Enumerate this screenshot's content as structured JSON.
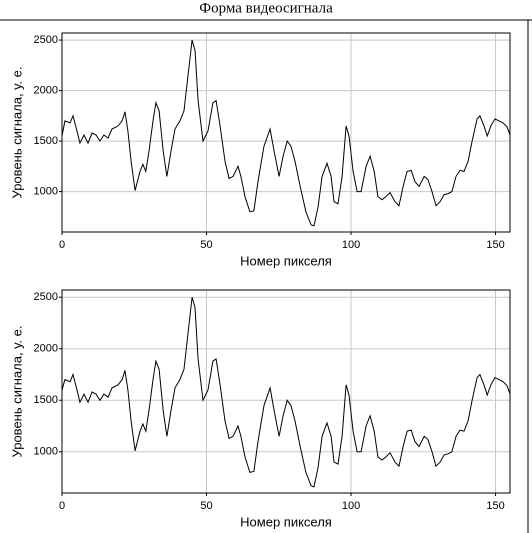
{
  "title": "Форма видеосигнала",
  "chart_data": [
    {
      "type": "line",
      "xlabel": "Номер пикселя",
      "ylabel": "Уровень сигнала,  у. е.",
      "xlim": [
        0,
        155
      ],
      "ylim": [
        600,
        2570
      ],
      "xticks": [
        0,
        50,
        100,
        150
      ],
      "yticks": [
        1000,
        1500,
        2000,
        2500
      ],
      "grid": true,
      "color": "#000000",
      "x": [
        0,
        1,
        2.8,
        3.8,
        5.2,
        6.2,
        7.6,
        9,
        10.4,
        11.8,
        13.1,
        14.5,
        15.9,
        17.3,
        19.4,
        20.8,
        21.8,
        22.8,
        23.9,
        25.3,
        27,
        28,
        29,
        30.1,
        31.5,
        32.5,
        33.6,
        35,
        36.3,
        37.7,
        39.1,
        40.8,
        42.2,
        43.6,
        45,
        46,
        47.1,
        48.8,
        50.5,
        52.2,
        53.3,
        54.7,
        56.4,
        57.8,
        59.2,
        60.9,
        61.9,
        63.3,
        65,
        66.4,
        67.8,
        69.9,
        72,
        73.4,
        75.1,
        76.5,
        77.9,
        79.2,
        80.6,
        82.4,
        84.4,
        86.2,
        87.2,
        88.6,
        90,
        91.7,
        93.1,
        94.1,
        95.5,
        96.9,
        98.3,
        99.3,
        100.7,
        102.1,
        103.5,
        105.2,
        106.6,
        108,
        109.3,
        110.7,
        112.1,
        113.5,
        115.2,
        116.6,
        118,
        119.4,
        120.8,
        122.1,
        123.5,
        125.3,
        126.6,
        128,
        129.4,
        130.8,
        132.2,
        133.6,
        134.9,
        136.3,
        137.7,
        139.1,
        140.5,
        141.9,
        143.6,
        144.6,
        146,
        147.1,
        148.4,
        149.8,
        151.2,
        152.6,
        154,
        155
      ],
      "values": [
        1550,
        1700,
        1680,
        1750,
        1600,
        1480,
        1560,
        1480,
        1580,
        1560,
        1500,
        1560,
        1530,
        1620,
        1650,
        1700,
        1790,
        1600,
        1300,
        1010,
        1200,
        1270,
        1200,
        1400,
        1700,
        1880,
        1800,
        1400,
        1150,
        1400,
        1620,
        1700,
        1800,
        2150,
        2500,
        2400,
        1900,
        1500,
        1600,
        1880,
        1900,
        1650,
        1300,
        1130,
        1150,
        1250,
        1150,
        950,
        800,
        810,
        1100,
        1450,
        1620,
        1400,
        1150,
        1350,
        1500,
        1450,
        1300,
        1050,
        800,
        670,
        660,
        850,
        1150,
        1280,
        1150,
        900,
        880,
        1150,
        1650,
        1550,
        1200,
        1000,
        1000,
        1250,
        1350,
        1200,
        950,
        920,
        950,
        990,
        900,
        860,
        1050,
        1200,
        1210,
        1100,
        1050,
        1150,
        1120,
        1000,
        860,
        900,
        970,
        980,
        1000,
        1150,
        1210,
        1200,
        1300,
        1500,
        1720,
        1750,
        1650,
        1550,
        1650,
        1720,
        1700,
        1680,
        1640,
        1560
      ]
    },
    {
      "type": "line",
      "xlabel": "Номер пикселя",
      "ylabel": "Уровень сигнала,  у. е.",
      "xlim": [
        0,
        155
      ],
      "ylim": [
        600,
        2570
      ],
      "xticks": [
        0,
        50,
        100,
        150
      ],
      "yticks": [
        1000,
        1500,
        2000,
        2500
      ],
      "grid": true,
      "color": "#000000",
      "x": [
        0,
        1,
        2.8,
        3.8,
        5.2,
        6.2,
        7.6,
        9,
        10.4,
        11.8,
        13.1,
        14.5,
        15.9,
        17.3,
        19.4,
        20.8,
        21.8,
        22.8,
        23.9,
        25.3,
        27,
        28,
        29,
        30.1,
        31.5,
        32.5,
        33.6,
        35,
        36.3,
        37.7,
        39.1,
        40.8,
        42.2,
        43.6,
        45,
        46,
        47.1,
        48.8,
        50.5,
        52.2,
        53.3,
        54.7,
        56.4,
        57.8,
        59.2,
        60.9,
        61.9,
        63.3,
        65,
        66.4,
        67.8,
        69.9,
        72,
        73.4,
        75.1,
        76.5,
        77.9,
        79.2,
        80.6,
        82.4,
        84.4,
        86.2,
        87.2,
        88.6,
        90,
        91.7,
        93.1,
        94.1,
        95.5,
        96.9,
        98.3,
        99.3,
        100.7,
        102.1,
        103.5,
        105.2,
        106.6,
        108,
        109.3,
        110.7,
        112.1,
        113.5,
        115.2,
        116.6,
        118,
        119.4,
        120.8,
        122.1,
        123.5,
        125.3,
        126.6,
        128,
        129.4,
        130.8,
        132.2,
        133.6,
        134.9,
        136.3,
        137.7,
        139.1,
        140.5,
        141.9,
        143.6,
        144.6,
        146,
        147.1,
        148.4,
        149.8,
        151.2,
        152.6,
        154,
        155
      ],
      "values": [
        1600,
        1700,
        1680,
        1750,
        1600,
        1480,
        1560,
        1480,
        1580,
        1560,
        1500,
        1560,
        1530,
        1620,
        1650,
        1700,
        1790,
        1600,
        1300,
        1010,
        1200,
        1270,
        1200,
        1400,
        1700,
        1880,
        1800,
        1400,
        1150,
        1400,
        1620,
        1700,
        1800,
        2150,
        2500,
        2400,
        1900,
        1500,
        1600,
        1880,
        1900,
        1650,
        1300,
        1130,
        1150,
        1250,
        1150,
        950,
        800,
        810,
        1100,
        1450,
        1620,
        1400,
        1150,
        1350,
        1500,
        1450,
        1300,
        1050,
        800,
        670,
        660,
        850,
        1150,
        1280,
        1150,
        900,
        880,
        1150,
        1650,
        1550,
        1200,
        1000,
        1000,
        1250,
        1350,
        1200,
        950,
        920,
        950,
        990,
        900,
        860,
        1050,
        1200,
        1210,
        1100,
        1050,
        1150,
        1120,
        1000,
        860,
        900,
        970,
        980,
        1000,
        1150,
        1210,
        1200,
        1300,
        1500,
        1720,
        1750,
        1650,
        1550,
        1650,
        1720,
        1700,
        1680,
        1640,
        1560
      ]
    }
  ]
}
